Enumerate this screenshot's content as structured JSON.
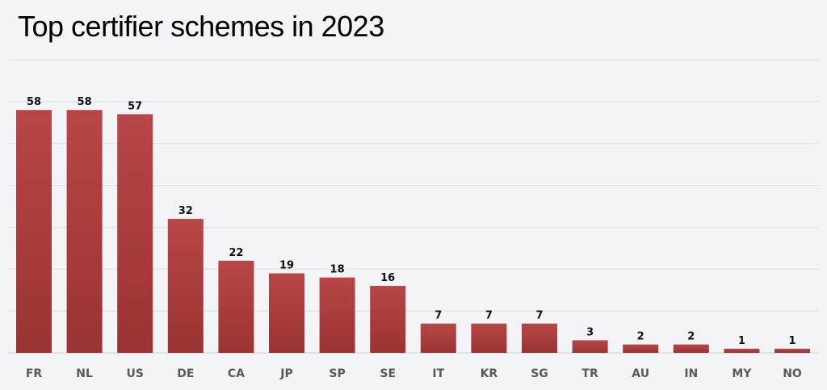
{
  "chart_data": {
    "type": "bar",
    "title": "Top certifier schemes in 2023",
    "xlabel": "",
    "ylabel": "",
    "categories": [
      "FR",
      "NL",
      "US",
      "DE",
      "CA",
      "JP",
      "SP",
      "SE",
      "IT",
      "KR",
      "SG",
      "TR",
      "AU",
      "IN",
      "MY",
      "NO"
    ],
    "values": [
      58,
      58,
      57,
      32,
      22,
      19,
      18,
      16,
      7,
      7,
      7,
      3,
      2,
      2,
      1,
      1
    ],
    "ylim": [
      0,
      70
    ],
    "grid": true,
    "gridlines": [
      10,
      20,
      30,
      40,
      50,
      60,
      70
    ],
    "bar_color": "#a83a3a",
    "legend": "none"
  }
}
